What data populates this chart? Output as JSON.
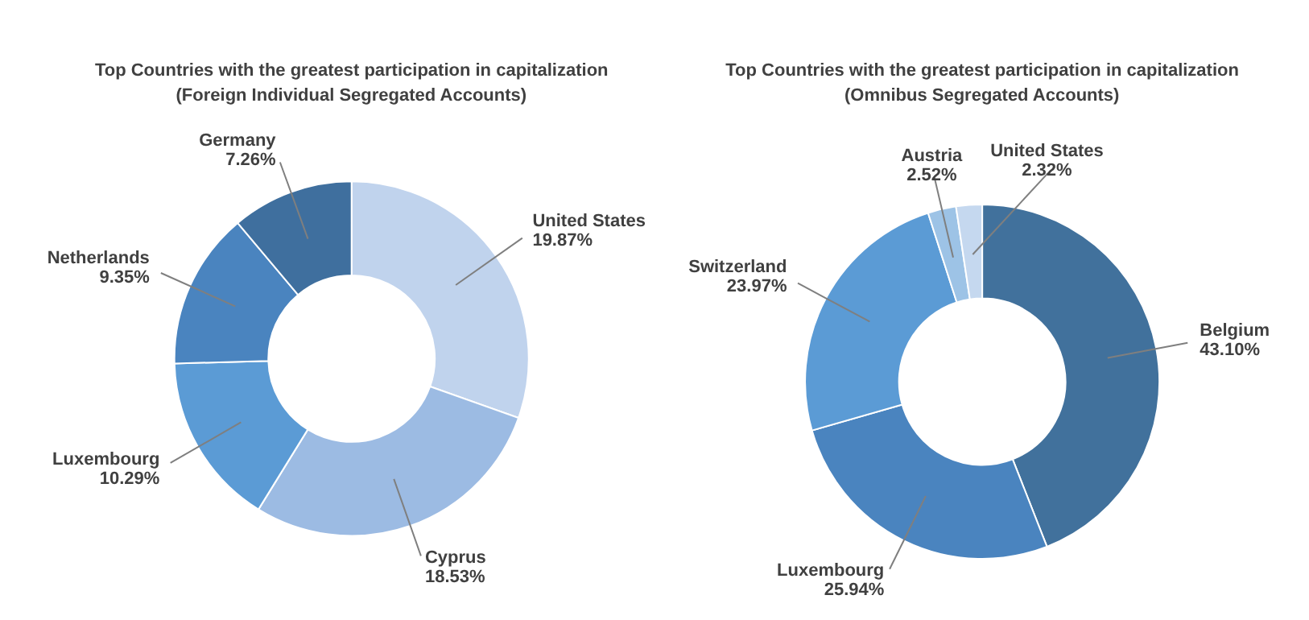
{
  "chart_data": [
    {
      "type": "donut",
      "title": "Top Countries with the greatest participation in capitalization",
      "subtitle": "(Foreign Individual Segregated Accounts)",
      "categories": [
        "United States",
        "Cyprus",
        "Luxembourg",
        "Netherlands",
        "Germany"
      ],
      "values": [
        19.87,
        18.53,
        10.29,
        9.35,
        7.26
      ],
      "colors": [
        "#c0d3ed",
        "#9cbbe3",
        "#5b9bd5",
        "#4a84bf",
        "#3f6f9e"
      ],
      "value_labels": [
        "19.87%",
        "18.53%",
        "10.29%",
        "9.35%",
        "7.26%"
      ]
    },
    {
      "type": "donut",
      "title": "Top Countries with the greatest participation in capitalization",
      "subtitle": "(Omnibus Segregated Accounts)",
      "categories": [
        "Belgium",
        "Luxembourg",
        "Switzerland",
        "Austria",
        "United States"
      ],
      "values": [
        43.1,
        25.94,
        23.97,
        2.52,
        2.32
      ],
      "colors": [
        "#41719c",
        "#4a84bf",
        "#5b9bd5",
        "#9dc3e6",
        "#c5d8ef"
      ],
      "value_labels": [
        "43.10%",
        "25.94%",
        "23.97%",
        "2.52%",
        "2.32%"
      ]
    }
  ]
}
